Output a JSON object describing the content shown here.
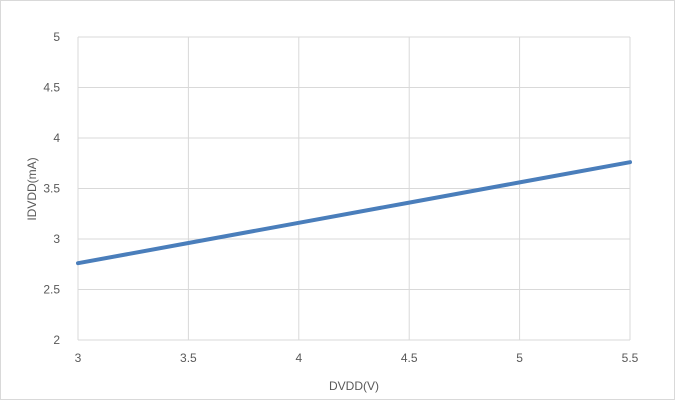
{
  "chart_data": {
    "type": "line",
    "title": "",
    "xlabel": "DVDD(V)",
    "ylabel": "IDVDD(mA)",
    "xlim": [
      3,
      5.5
    ],
    "ylim": [
      2,
      5
    ],
    "x_ticks": [
      "3",
      "3.5",
      "4",
      "4.5",
      "5",
      "5.5"
    ],
    "y_ticks": [
      "2",
      "2.5",
      "3",
      "3.5",
      "4",
      "4.5",
      "5"
    ],
    "grid": true,
    "legend": "none",
    "series": [
      {
        "color": "#4a7ebb",
        "x": [
          3,
          3.5,
          4,
          4.5,
          5,
          5.5
        ],
        "y": [
          2.76,
          2.96,
          3.16,
          3.36,
          3.56,
          3.76
        ]
      }
    ]
  }
}
